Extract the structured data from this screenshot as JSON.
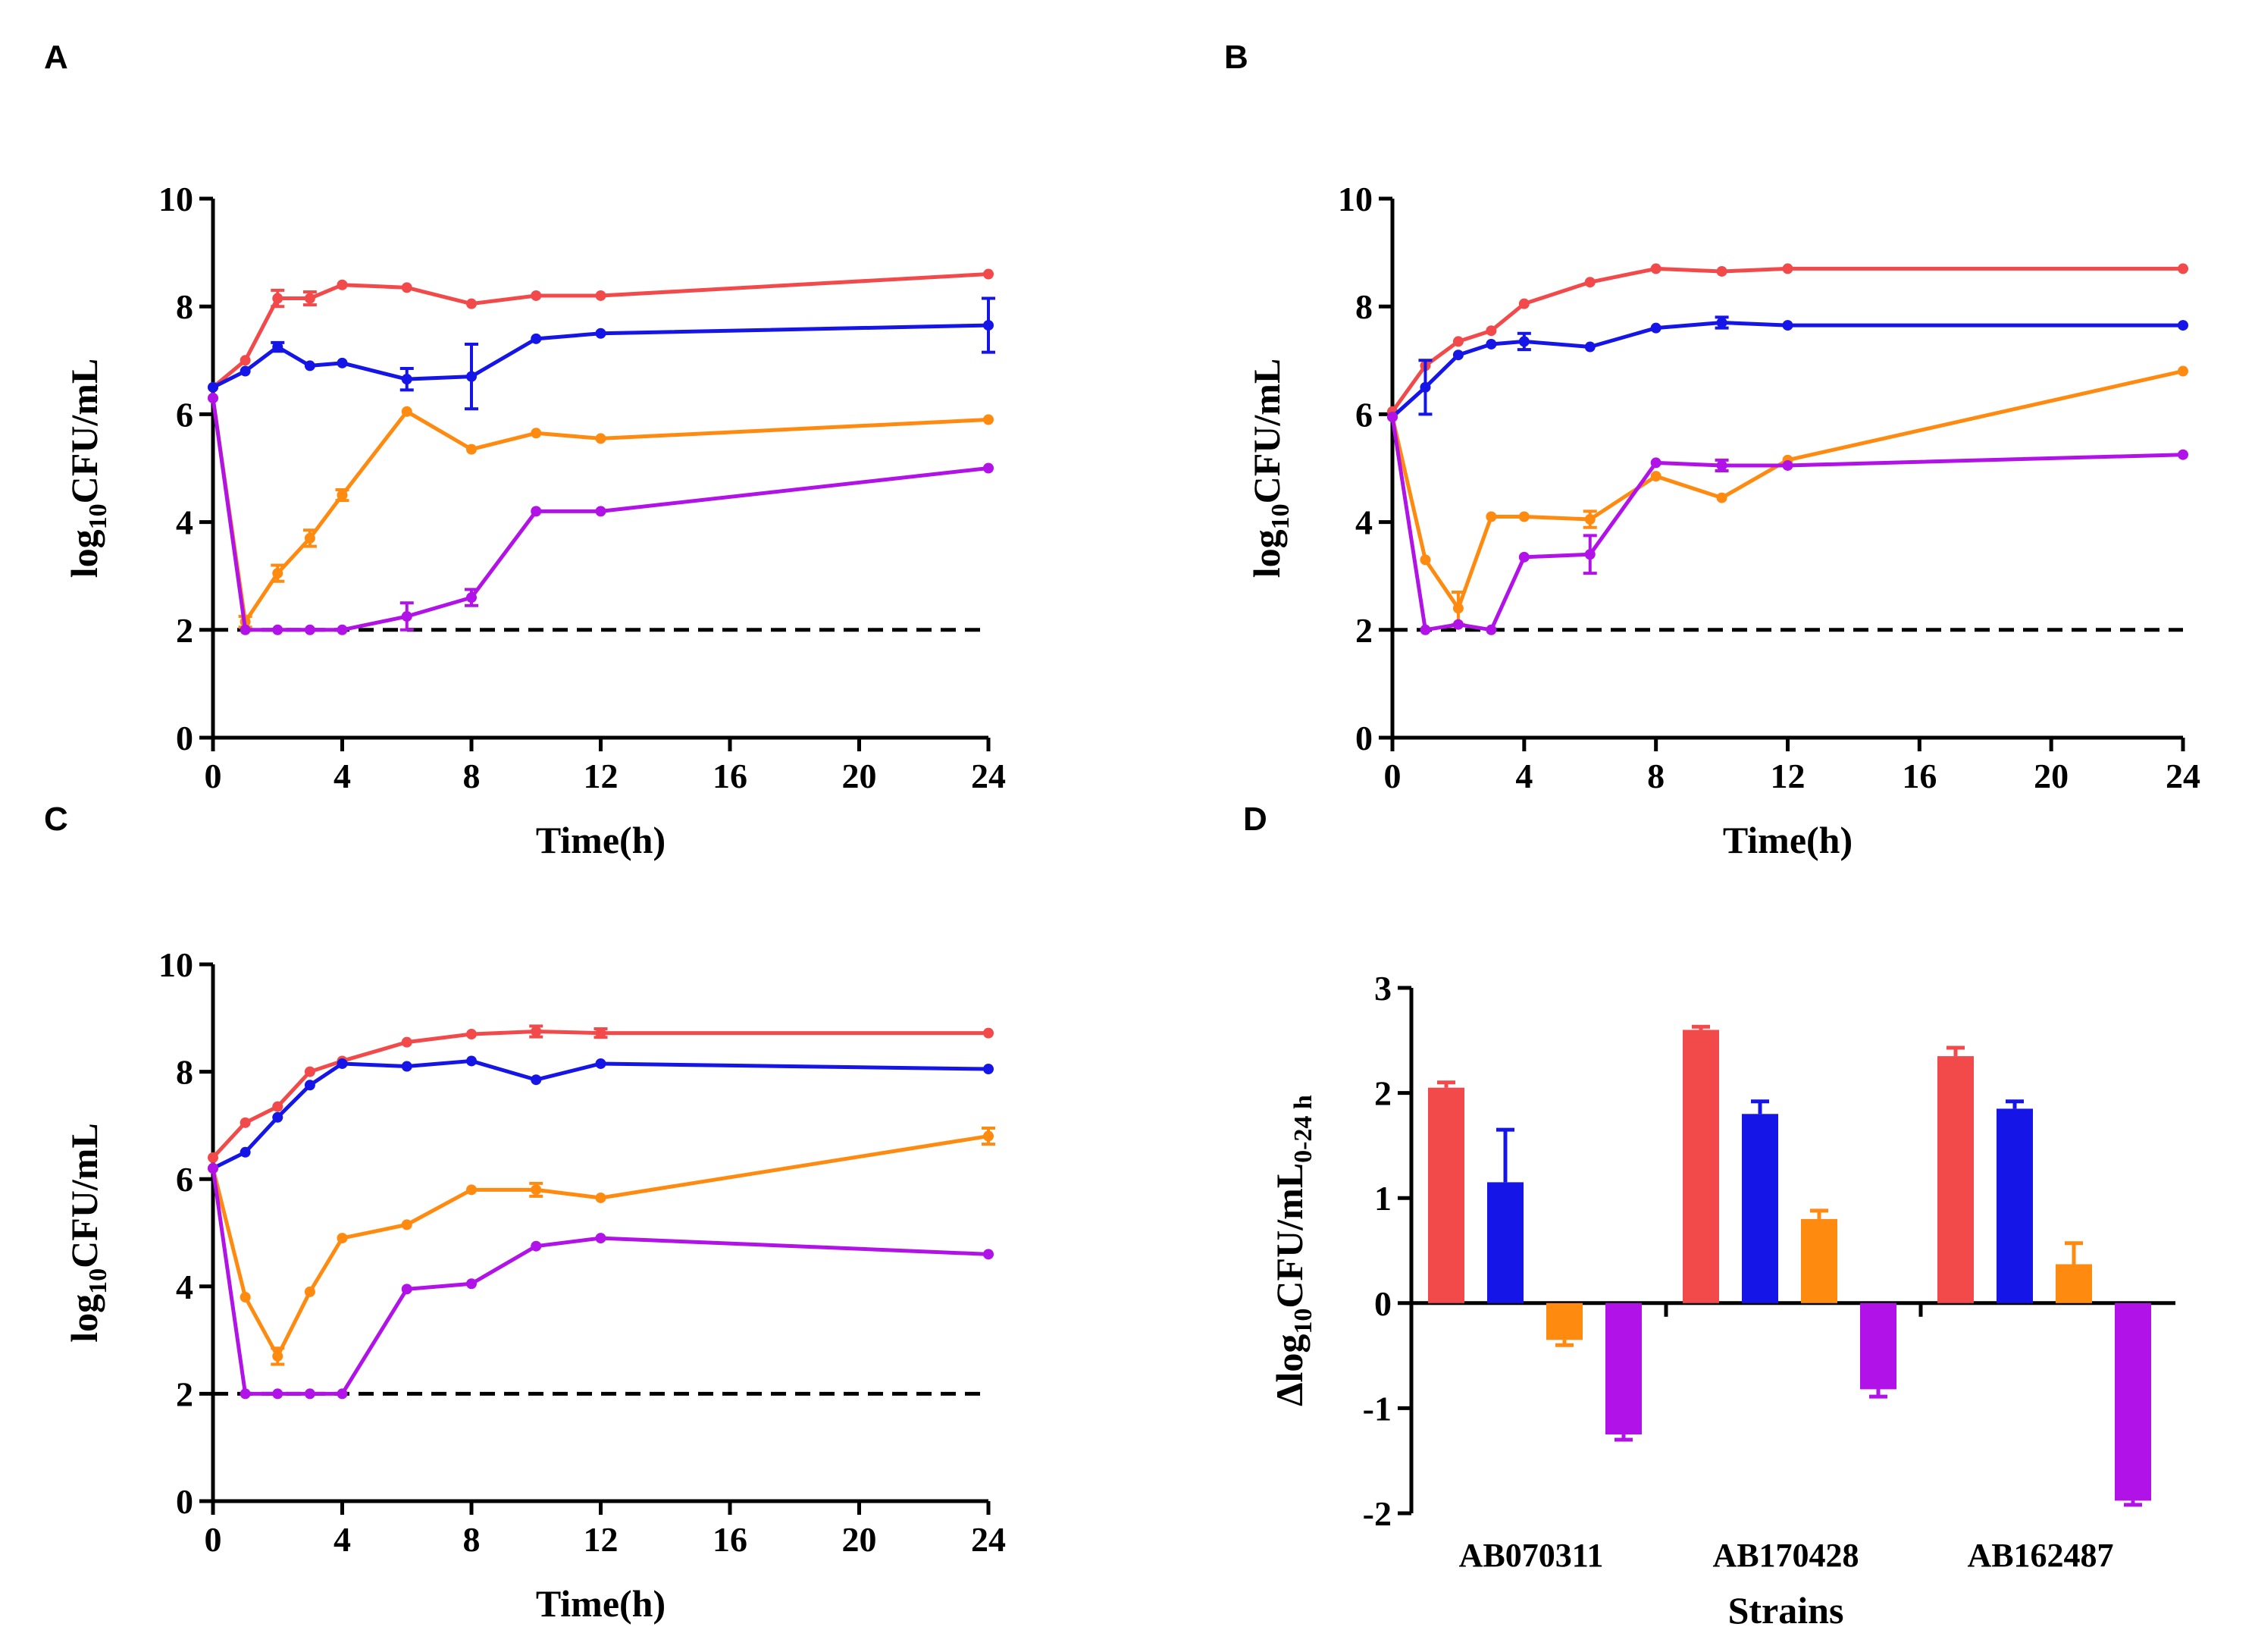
{
  "colors": {
    "red": "#F24A4A",
    "blue": "#1515E8",
    "orange": "#FF8A10",
    "purple": "#B012E8",
    "axis": "#000000"
  },
  "chart_data": [
    {
      "panel": "A",
      "type": "line",
      "xlabel": "Time(h)",
      "ylabel_pre": "log",
      "ylabel_sub": "10",
      "ylabel_post": "CFU/mL",
      "xlim": [
        0,
        24
      ],
      "ylim": [
        0,
        10
      ],
      "xticks": [
        0,
        4,
        8,
        12,
        16,
        20,
        24
      ],
      "yticks": [
        0,
        2,
        4,
        6,
        8,
        10
      ],
      "detection_limit": 2,
      "x": [
        0,
        1,
        2,
        3,
        4,
        6,
        8,
        10,
        12,
        24
      ],
      "series": [
        {
          "color": "red",
          "values": [
            6.5,
            7.0,
            8.15,
            8.15,
            8.4,
            8.35,
            8.05,
            8.2,
            8.2,
            8.6
          ],
          "errors": [
            0.05,
            0.05,
            0.15,
            0.12,
            0.05,
            0.05,
            0.05,
            0.05,
            0.05,
            0.05
          ]
        },
        {
          "color": "blue",
          "values": [
            6.5,
            6.8,
            7.25,
            6.9,
            6.95,
            6.65,
            6.7,
            7.4,
            7.5,
            7.65
          ],
          "errors": [
            0.05,
            0.05,
            0.08,
            0.05,
            0.05,
            0.2,
            0.6,
            0.05,
            0.05,
            0.5
          ]
        },
        {
          "color": "orange",
          "values": [
            6.3,
            2.15,
            3.05,
            3.7,
            4.5,
            6.05,
            5.35,
            5.65,
            5.55,
            5.9
          ],
          "errors": [
            0.05,
            0.1,
            0.15,
            0.15,
            0.1,
            0.05,
            0.05,
            0.05,
            0.05,
            0.05
          ]
        },
        {
          "color": "purple",
          "values": [
            6.3,
            2.0,
            2.0,
            2.0,
            2.0,
            2.25,
            2.6,
            4.2,
            4.2,
            5.0
          ],
          "errors": [
            0.05,
            0.0,
            0.0,
            0.0,
            0.0,
            0.25,
            0.15,
            0.05,
            0.05,
            0.05
          ]
        }
      ]
    },
    {
      "panel": "B",
      "type": "line",
      "xlabel": "Time(h)",
      "ylabel_pre": "log",
      "ylabel_sub": "10",
      "ylabel_post": "CFU/mL",
      "xlim": [
        0,
        24
      ],
      "ylim": [
        0,
        10
      ],
      "xticks": [
        0,
        4,
        8,
        12,
        16,
        20,
        24
      ],
      "yticks": [
        0,
        2,
        4,
        6,
        8,
        10
      ],
      "detection_limit": 2,
      "x": [
        0,
        1,
        2,
        3,
        4,
        6,
        8,
        10,
        12,
        24
      ],
      "series": [
        {
          "color": "red",
          "values": [
            6.05,
            6.9,
            7.35,
            7.55,
            8.05,
            8.45,
            8.7,
            8.65,
            8.7,
            8.7
          ],
          "errors": [
            0.05,
            0.05,
            0.05,
            0.05,
            0.05,
            0.05,
            0.05,
            0.05,
            0.05,
            0.05
          ]
        },
        {
          "color": "blue",
          "values": [
            5.95,
            6.5,
            7.1,
            7.3,
            7.35,
            7.25,
            7.6,
            7.7,
            7.65,
            7.65
          ],
          "errors": [
            0.05,
            0.5,
            0.05,
            0.05,
            0.15,
            0.05,
            0.05,
            0.1,
            0.05,
            0.05
          ]
        },
        {
          "color": "orange",
          "values": [
            5.95,
            3.3,
            2.4,
            4.1,
            4.1,
            4.05,
            4.85,
            4.45,
            5.15,
            6.8
          ],
          "errors": [
            0.05,
            0.05,
            0.3,
            0.05,
            0.05,
            0.15,
            0.05,
            0.05,
            0.05,
            0.05
          ]
        },
        {
          "color": "purple",
          "values": [
            5.95,
            2.0,
            2.1,
            2.0,
            3.35,
            3.4,
            5.1,
            5.05,
            5.05,
            5.25
          ],
          "errors": [
            0.05,
            0.0,
            0.05,
            0.0,
            0.05,
            0.35,
            0.05,
            0.1,
            0.05,
            0.05
          ]
        }
      ]
    },
    {
      "panel": "C",
      "type": "line",
      "xlabel": "Time(h)",
      "ylabel_pre": "log",
      "ylabel_sub": "10",
      "ylabel_post": "CFU/mL",
      "xlim": [
        0,
        24
      ],
      "ylim": [
        0,
        10
      ],
      "xticks": [
        0,
        4,
        8,
        12,
        16,
        20,
        24
      ],
      "yticks": [
        0,
        2,
        4,
        6,
        8,
        10
      ],
      "detection_limit": 2,
      "x": [
        0,
        1,
        2,
        3,
        4,
        6,
        8,
        10,
        12,
        24
      ],
      "series": [
        {
          "color": "red",
          "values": [
            6.4,
            7.05,
            7.35,
            8.0,
            8.2,
            8.55,
            8.7,
            8.75,
            8.72,
            8.72
          ],
          "errors": [
            0.05,
            0.05,
            0.05,
            0.05,
            0.05,
            0.05,
            0.05,
            0.1,
            0.08,
            0.05
          ]
        },
        {
          "color": "blue",
          "values": [
            6.2,
            6.5,
            7.15,
            7.75,
            8.15,
            8.1,
            8.2,
            7.85,
            8.15,
            8.05
          ],
          "errors": [
            0.05,
            0.05,
            0.05,
            0.05,
            0.05,
            0.05,
            0.05,
            0.05,
            0.05,
            0.05
          ]
        },
        {
          "color": "orange",
          "values": [
            6.2,
            3.8,
            2.7,
            3.9,
            4.9,
            5.15,
            5.8,
            5.8,
            5.65,
            6.8
          ],
          "errors": [
            0.05,
            0.05,
            0.15,
            0.05,
            0.05,
            0.05,
            0.05,
            0.12,
            0.05,
            0.15
          ]
        },
        {
          "color": "purple",
          "values": [
            6.2,
            2.0,
            2.0,
            2.0,
            2.0,
            3.95,
            4.05,
            4.75,
            4.9,
            4.6
          ],
          "errors": [
            0.05,
            0.0,
            0.0,
            0.0,
            0.0,
            0.05,
            0.05,
            0.05,
            0.05,
            0.05
          ]
        }
      ]
    },
    {
      "panel": "D",
      "type": "bar",
      "xlabel": "Strains",
      "ylabel_prefix": "Δ",
      "ylabel_pre": "log",
      "ylabel_sub": "10",
      "ylabel_post": "CFU/mL",
      "ylabel_sub2": "0-24 h",
      "ylim": [
        -2,
        3
      ],
      "yticks": [
        -2,
        -1,
        0,
        1,
        2,
        3
      ],
      "categories": [
        "AB070311",
        "AB170428",
        "AB162487"
      ],
      "series": [
        {
          "color": "red",
          "values": [
            2.05,
            2.6,
            2.35
          ],
          "errors": [
            0.05,
            0.03,
            0.08
          ]
        },
        {
          "color": "blue",
          "values": [
            1.15,
            1.8,
            1.85
          ],
          "errors": [
            0.5,
            0.12,
            0.07
          ]
        },
        {
          "color": "orange",
          "values": [
            -0.35,
            0.8,
            0.37
          ],
          "errors": [
            0.05,
            0.08,
            0.2
          ]
        },
        {
          "color": "purple",
          "values": [
            -1.25,
            -0.82,
            -1.88
          ],
          "errors": [
            0.05,
            0.07,
            0.04
          ]
        }
      ]
    }
  ]
}
